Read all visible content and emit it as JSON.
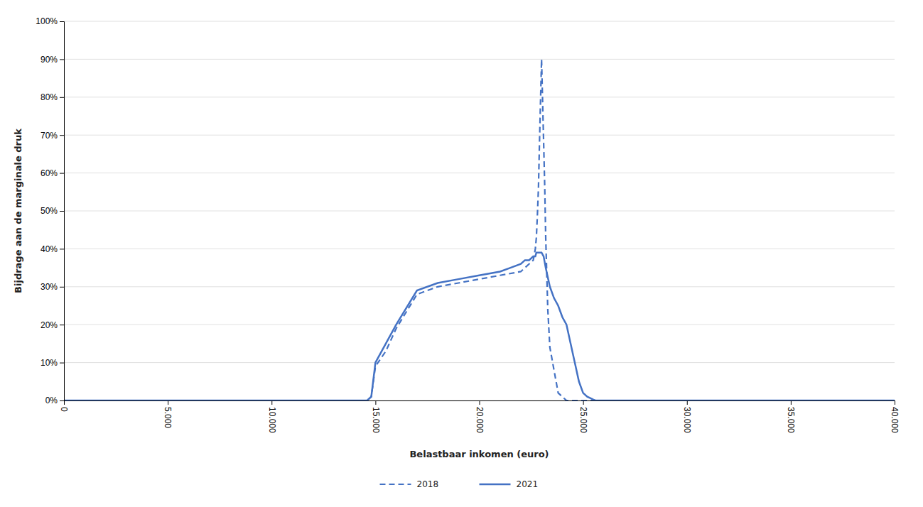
{
  "chart_data": {
    "type": "line",
    "xlabel": "Belastbaar inkomen (euro)",
    "ylabel": "Bijdrage aan de marginale druk",
    "xlim": [
      0,
      40000
    ],
    "ylim": [
      0,
      1.0
    ],
    "xticks": [
      0,
      {
        "value": 5000,
        "label": "5.000"
      },
      {
        "value": 10000,
        "label": "10.000"
      },
      {
        "value": 15000,
        "label": "15.000"
      },
      {
        "value": 20000,
        "label": "20.000"
      },
      {
        "value": 25000,
        "label": "25.000"
      },
      {
        "value": 30000,
        "label": "30.000"
      },
      {
        "value": 35000,
        "label": "35.000"
      },
      {
        "value": 40000,
        "label": "40.000"
      }
    ],
    "yticks": [
      {
        "value": 0.0,
        "label": "0%"
      },
      {
        "value": 0.1,
        "label": "10%"
      },
      {
        "value": 0.2,
        "label": "20%"
      },
      {
        "value": 0.3,
        "label": "30%"
      },
      {
        "value": 0.4,
        "label": "40%"
      },
      {
        "value": 0.5,
        "label": "50%"
      },
      {
        "value": 0.6,
        "label": "60%"
      },
      {
        "value": 0.7,
        "label": "70%"
      },
      {
        "value": 0.8,
        "label": "80%"
      },
      {
        "value": 0.9,
        "label": "90%"
      },
      {
        "value": 1.0,
        "label": "100%"
      }
    ],
    "grid": "y",
    "legend": "bottom",
    "series": [
      {
        "name": "2018",
        "color": "#4472C4",
        "line_style": "dashed",
        "x": [
          0,
          14600,
          14800,
          15000,
          15500,
          16000,
          17000,
          18000,
          19000,
          20000,
          21000,
          22000,
          22200,
          22400,
          22600,
          22700,
          22750,
          22800,
          22850,
          22900,
          22950,
          23000,
          23050,
          23100,
          23150,
          23200,
          23300,
          23400,
          23600,
          23800,
          24000,
          24200,
          40000
        ],
        "values": [
          0,
          0,
          0.01,
          0.09,
          0.13,
          0.19,
          0.28,
          0.3,
          0.31,
          0.32,
          0.33,
          0.34,
          0.35,
          0.36,
          0.37,
          0.4,
          0.43,
          0.49,
          0.56,
          0.68,
          0.79,
          0.9,
          0.79,
          0.68,
          0.57,
          0.43,
          0.24,
          0.14,
          0.08,
          0.02,
          0.01,
          0,
          0
        ]
      },
      {
        "name": "2021",
        "color": "#4472C4",
        "line_style": "solid",
        "x": [
          0,
          14600,
          14800,
          15000,
          15500,
          16000,
          17000,
          18000,
          19000,
          20000,
          21000,
          21500,
          22000,
          22200,
          22400,
          22600,
          22700,
          22750,
          22800,
          22900,
          23000,
          23100,
          23200,
          23400,
          23600,
          23800,
          24000,
          24200,
          24400,
          24600,
          24800,
          25000,
          25200,
          25400,
          25500,
          25600,
          40000
        ],
        "values": [
          0,
          0,
          0.01,
          0.1,
          0.15,
          0.2,
          0.29,
          0.31,
          0.32,
          0.33,
          0.34,
          0.35,
          0.36,
          0.37,
          0.37,
          0.38,
          0.38,
          0.39,
          0.39,
          0.39,
          0.39,
          0.38,
          0.35,
          0.3,
          0.27,
          0.25,
          0.22,
          0.2,
          0.15,
          0.1,
          0.05,
          0.02,
          0.01,
          0.005,
          0.002,
          0,
          0
        ]
      }
    ]
  }
}
